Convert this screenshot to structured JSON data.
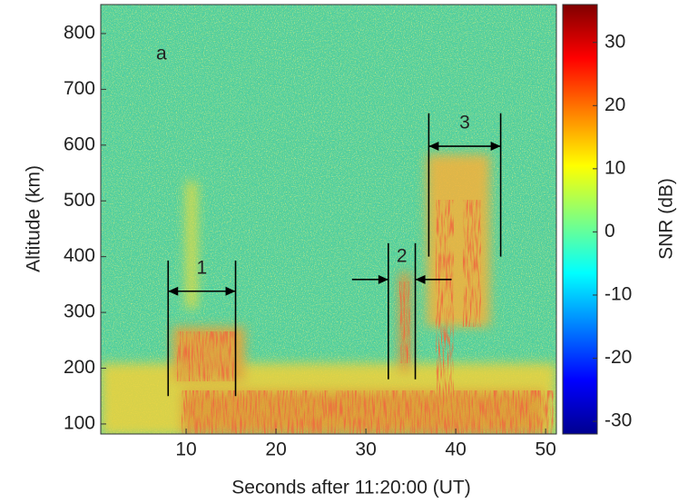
{
  "chart_data": {
    "type": "heatmap",
    "panel_label": "a",
    "xlabel": "Seconds after 11:20:00 (UT)",
    "ylabel": "Altitude (km)",
    "colorbar_label": "SNR (dB)",
    "colormap": "jet",
    "xlim": [
      0.5,
      51.2
    ],
    "xticks": [
      10,
      20,
      30,
      40,
      50
    ],
    "ylim": [
      82,
      852
    ],
    "yticks": [
      100,
      200,
      300,
      400,
      500,
      600,
      700,
      800
    ],
    "clim": [
      -32,
      36
    ],
    "cticks": [
      -30,
      -20,
      -10,
      0,
      10,
      20,
      30
    ],
    "annotations": [
      {
        "label": "1",
        "x": [
          8,
          15.5
        ],
        "y": [
          150,
          393
        ],
        "arrow_y": 338,
        "arrows": "between"
      },
      {
        "label": "2",
        "x": [
          32.5,
          35.5
        ],
        "y": [
          180,
          424
        ],
        "arrow_y": 359,
        "arrows": "outside"
      },
      {
        "label": "3",
        "x": [
          37,
          45
        ],
        "y": [
          400,
          657
        ],
        "arrow_y": 598,
        "arrows": "between"
      }
    ]
  }
}
